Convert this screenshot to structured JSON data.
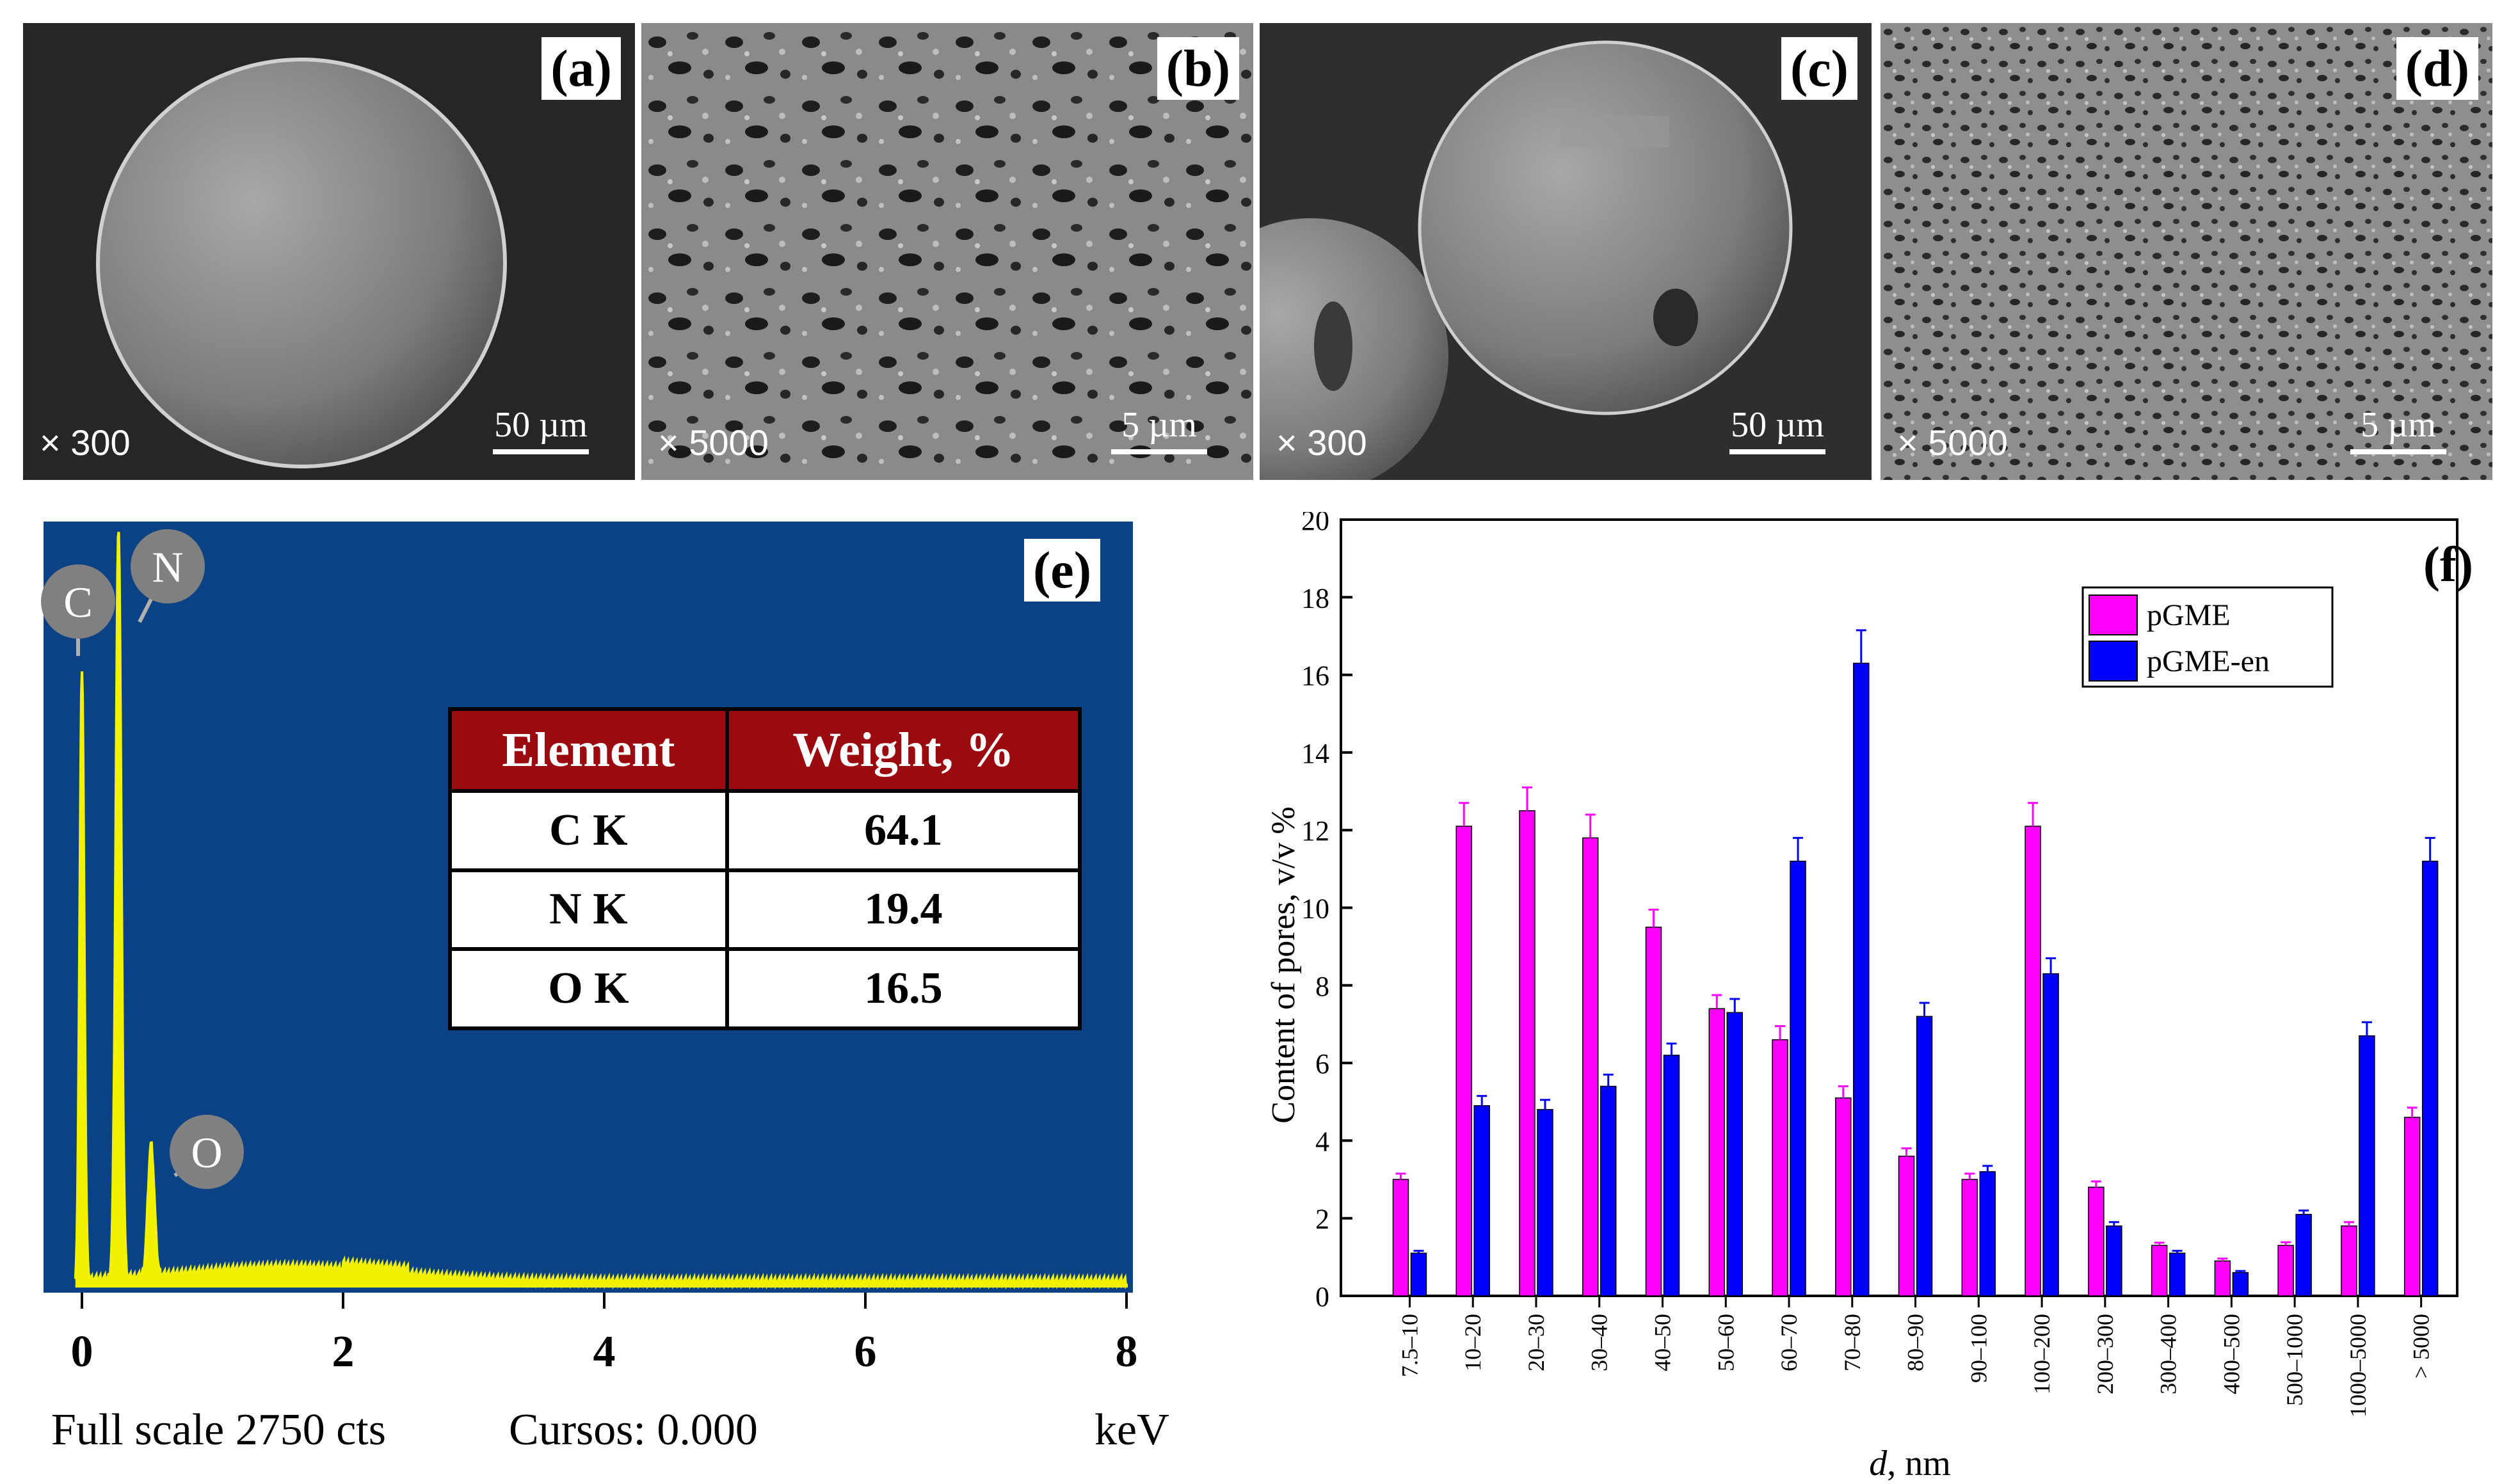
{
  "panels": {
    "a": {
      "label": "(a)",
      "magnification": "× 300",
      "scale": "50 µm"
    },
    "b": {
      "label": "(b)",
      "magnification": "× 5000",
      "scale": "5 µm"
    },
    "c": {
      "label": "(c)",
      "magnification": "× 300",
      "scale": "50 µm"
    },
    "d": {
      "label": "(d)",
      "magnification": "× 5000",
      "scale": "5 µm"
    }
  },
  "eds": {
    "label": "(e)",
    "peaks": [
      "C",
      "N",
      "O"
    ],
    "x_ticks": [
      "0",
      "2",
      "4",
      "6",
      "8"
    ],
    "footer_scale": "Full scale 2750 cts",
    "footer_cursor": "Cursos: 0.000",
    "footer_unit": "keV",
    "table_headers": [
      "Element",
      "Weight, %"
    ],
    "table_rows": [
      {
        "element": "C  K",
        "weight": "64.1"
      },
      {
        "element": "N  K",
        "weight": "19.4"
      },
      {
        "element": "O  K",
        "weight": "16.5"
      }
    ],
    "colors": {
      "background": "#0a4285",
      "spectrum": "#f2f200",
      "header": "#9b0a0e"
    }
  },
  "chart_data": {
    "type": "bar",
    "label": "(f)",
    "xlabel_italic": "d",
    "xlabel_rest": ", nm",
    "ylabel": "Content of pores, v/v %",
    "ylim": [
      0,
      20
    ],
    "yticks": [
      "0",
      "2",
      "4",
      "6",
      "8",
      "10",
      "12",
      "14",
      "16",
      "18",
      "20"
    ],
    "categories": [
      "7.5–10",
      "10–20",
      "20–30",
      "30–40",
      "40–50",
      "50–60",
      "60–70",
      "70–80",
      "80–90",
      "90–100",
      "100–200",
      "200–300",
      "300–400",
      "400–500",
      "500–1000",
      "1000–5000",
      "> 5000"
    ],
    "series": [
      {
        "name": "pGME",
        "color": "#ff00ff",
        "values": [
          3.0,
          12.1,
          12.5,
          11.8,
          9.5,
          7.4,
          6.6,
          5.1,
          3.6,
          3.0,
          12.1,
          2.8,
          1.3,
          0.9,
          1.3,
          1.8,
          4.6
        ],
        "errors": [
          0.15,
          0.6,
          0.6,
          0.6,
          0.45,
          0.35,
          0.35,
          0.3,
          0.2,
          0.15,
          0.6,
          0.15,
          0.07,
          0.06,
          0.08,
          0.1,
          0.25
        ]
      },
      {
        "name": "pGME-en",
        "color": "#0000ff",
        "values": [
          1.1,
          4.9,
          4.8,
          5.4,
          6.2,
          7.3,
          11.2,
          16.3,
          7.2,
          3.2,
          8.3,
          1.8,
          1.1,
          0.6,
          2.1,
          6.7,
          11.2
        ],
        "errors": [
          0.06,
          0.25,
          0.25,
          0.3,
          0.3,
          0.35,
          0.6,
          0.85,
          0.35,
          0.15,
          0.4,
          0.1,
          0.06,
          0.04,
          0.1,
          0.35,
          0.6
        ]
      }
    ]
  }
}
